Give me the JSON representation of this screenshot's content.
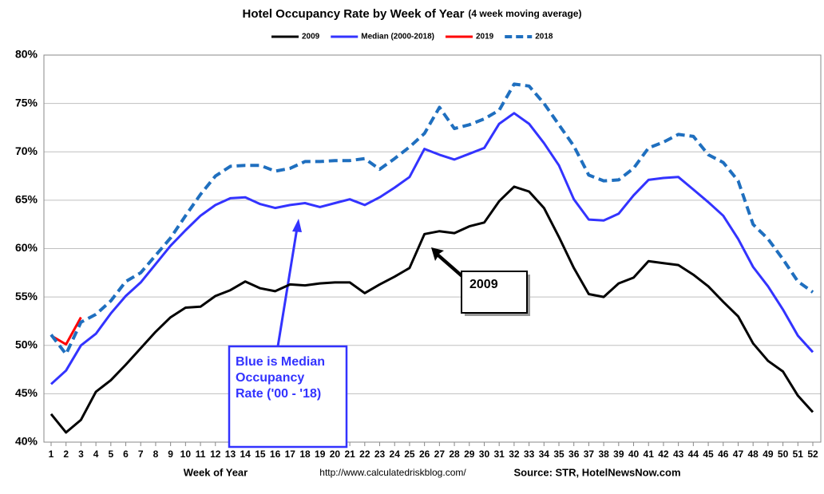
{
  "chart_data": {
    "type": "line",
    "title": "Hotel Occupancy Rate by  Week of Year",
    "subtitle": "(4 week moving average)",
    "x_label": "Week of Year",
    "url": "http://www.calculatedriskblog.com/",
    "source": "Source: STR, HotelNewsNow.com",
    "categories": [
      1,
      2,
      3,
      4,
      5,
      6,
      7,
      8,
      9,
      10,
      11,
      12,
      13,
      14,
      15,
      16,
      17,
      18,
      19,
      20,
      21,
      22,
      23,
      24,
      25,
      26,
      27,
      28,
      29,
      30,
      31,
      32,
      33,
      34,
      35,
      36,
      37,
      38,
      39,
      40,
      41,
      42,
      43,
      44,
      45,
      46,
      47,
      48,
      49,
      50,
      51,
      52
    ],
    "ylim": [
      40,
      80
    ],
    "yticks": [
      {
        "value": 40,
        "label": "40%"
      },
      {
        "value": 45,
        "label": "45%"
      },
      {
        "value": 50,
        "label": "50%"
      },
      {
        "value": 55,
        "label": "55%"
      },
      {
        "value": 60,
        "label": "60%"
      },
      {
        "value": 65,
        "label": "65%"
      },
      {
        "value": 70,
        "label": "70%"
      },
      {
        "value": 75,
        "label": "75%"
      },
      {
        "value": 80,
        "label": "80%"
      }
    ],
    "grid": true,
    "legend": "top",
    "series": [
      {
        "name": "2009",
        "color": "#000000",
        "dashed": false,
        "values": [
          42.9,
          41.0,
          42.3,
          45.2,
          46.4,
          48.0,
          49.7,
          51.4,
          52.9,
          53.9,
          54.0,
          55.1,
          55.7,
          56.6,
          55.9,
          55.6,
          56.3,
          56.2,
          56.4,
          56.5,
          56.5,
          55.4,
          56.3,
          57.1,
          58.0,
          61.5,
          61.8,
          61.6,
          62.3,
          62.7,
          64.9,
          66.4,
          65.9,
          64.2,
          61.2,
          58.0,
          55.3,
          55.0,
          56.4,
          57.0,
          58.7,
          58.5,
          58.3,
          57.3,
          56.1,
          54.5,
          53.0,
          50.2,
          48.4,
          47.3,
          44.8,
          43.1
        ]
      },
      {
        "name": "Median (2000-2018)",
        "color": "#3333ff",
        "dashed": false,
        "values": [
          46.0,
          47.4,
          50.0,
          51.2,
          53.3,
          55.1,
          56.5,
          58.4,
          60.3,
          61.9,
          63.4,
          64.5,
          65.2,
          65.3,
          64.6,
          64.2,
          64.5,
          64.7,
          64.3,
          64.7,
          65.1,
          64.5,
          65.3,
          66.3,
          67.4,
          70.3,
          69.7,
          69.2,
          69.8,
          70.4,
          72.9,
          74.0,
          72.9,
          70.9,
          68.6,
          65.1,
          63.0,
          62.9,
          63.6,
          65.5,
          67.1,
          67.3,
          67.4,
          66.1,
          64.8,
          63.4,
          61.0,
          58.1,
          56.1,
          53.7,
          51.0,
          49.3
        ]
      },
      {
        "name": "2019",
        "color": "#ff0000",
        "dashed": false,
        "values": [
          51.0,
          50.1,
          52.9,
          null,
          null,
          null,
          null,
          null,
          null,
          null,
          null,
          null,
          null,
          null,
          null,
          null,
          null,
          null,
          null,
          null,
          null,
          null,
          null,
          null,
          null,
          null,
          null,
          null,
          null,
          null,
          null,
          null,
          null,
          null,
          null,
          null,
          null,
          null,
          null,
          null,
          null,
          null,
          null,
          null,
          null,
          null,
          null,
          null,
          null,
          null,
          null,
          null
        ]
      },
      {
        "name": "2018",
        "color": "#1f6fbf",
        "dashed": true,
        "values": [
          51.1,
          49.1,
          52.4,
          53.2,
          54.6,
          56.6,
          57.5,
          59.3,
          61.1,
          63.4,
          65.6,
          67.5,
          68.5,
          68.6,
          68.6,
          68.0,
          68.3,
          69.0,
          69.0,
          69.1,
          69.1,
          69.3,
          68.2,
          69.3,
          70.5,
          71.9,
          74.6,
          72.4,
          72.8,
          73.4,
          74.3,
          77.0,
          76.8,
          75.0,
          72.8,
          70.6,
          67.6,
          67.0,
          67.1,
          68.3,
          70.4,
          71.0,
          71.8,
          71.6,
          69.7,
          68.9,
          67.0,
          62.5,
          61.0,
          58.9,
          56.6,
          55.5
        ]
      }
    ],
    "annotations": [
      {
        "lines": [
          "2009"
        ]
      },
      {
        "lines": [
          "Blue is Median",
          "Occupancy",
          "Rate ('00 - '18)"
        ]
      }
    ]
  }
}
